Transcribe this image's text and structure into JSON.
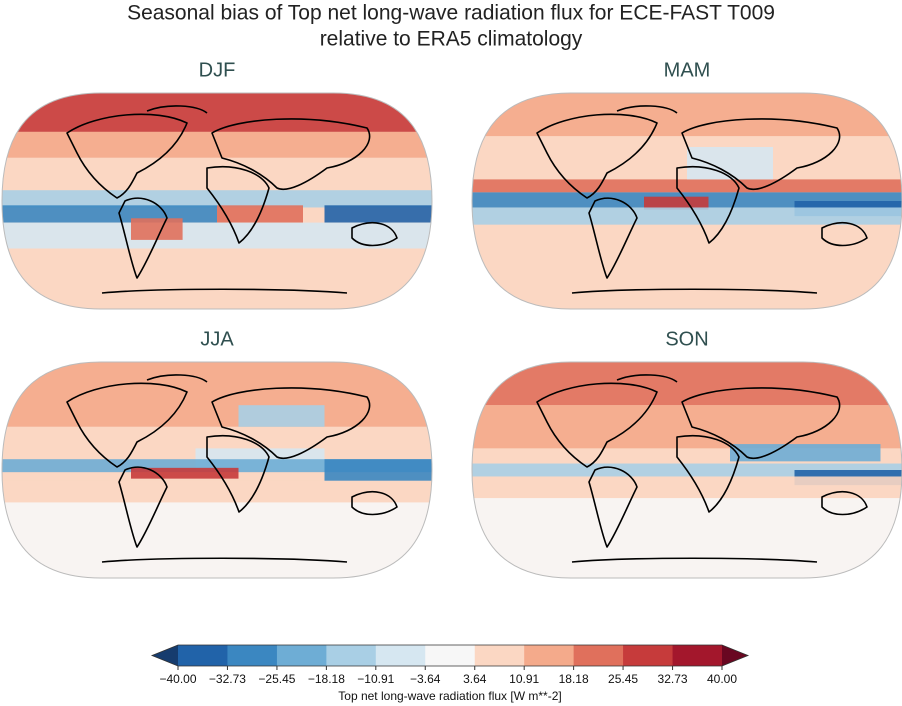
{
  "title": [
    "Seasonal bias of Top net long-wave radiation flux for ECE-FAST T009",
    "relative to ERA5 climatology"
  ],
  "panels": [
    {
      "title": "DJF"
    },
    {
      "title": "MAM"
    },
    {
      "title": "JJA"
    },
    {
      "title": "SON"
    }
  ],
  "colorbar": {
    "label": "Top net long-wave radiation flux [W m**-2]",
    "ticks": [
      {
        "value": -40,
        "label": "−40.00"
      },
      {
        "value": -32.73,
        "label": "−32.73"
      },
      {
        "value": -25.45,
        "label": "−25.45"
      },
      {
        "value": -18.18,
        "label": "−18.18"
      },
      {
        "value": -10.91,
        "label": "−10.91"
      },
      {
        "value": -3.64,
        "label": "−3.64"
      },
      {
        "value": 3.64,
        "label": "3.64"
      },
      {
        "value": 10.91,
        "label": "10.91"
      },
      {
        "value": 18.18,
        "label": "18.18"
      },
      {
        "value": 25.45,
        "label": "25.45"
      },
      {
        "value": 32.73,
        "label": "32.73"
      },
      {
        "value": 40,
        "label": "40.00"
      }
    ],
    "colors": [
      "#2163a9",
      "#3b87c1",
      "#6eadd5",
      "#a9cfe5",
      "#d6e7f1",
      "#f7f7f7",
      "#fbd7c3",
      "#f4aa8b",
      "#e0705c",
      "#c63b3b",
      "#a3172c"
    ],
    "under_color": "#163c6e",
    "over_color": "#690721"
  }
}
